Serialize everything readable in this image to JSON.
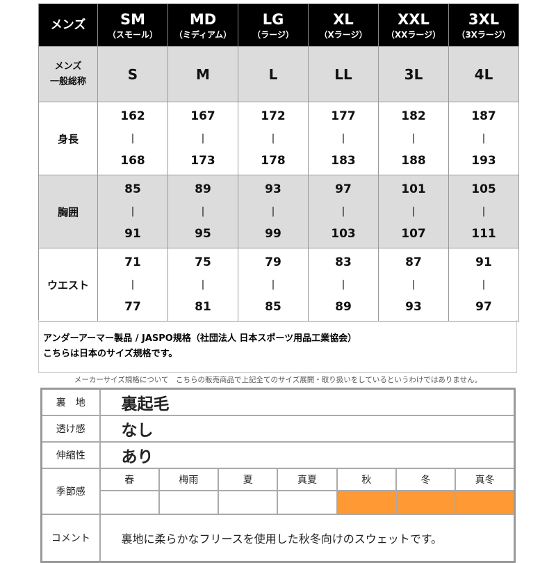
{
  "size_table": {
    "corner_label": "メンズ",
    "sizes": [
      {
        "code": "SM",
        "name": "（スモール）",
        "general": "S",
        "height": [
          "162",
          "|",
          "168"
        ],
        "chest": [
          "85",
          "|",
          "91"
        ],
        "waist": [
          "71",
          "|",
          "77"
        ]
      },
      {
        "code": "MD",
        "name": "（ミディアム）",
        "general": "M",
        "height": [
          "167",
          "|",
          "173"
        ],
        "chest": [
          "89",
          "|",
          "95"
        ],
        "waist": [
          "75",
          "|",
          "81"
        ]
      },
      {
        "code": "LG",
        "name": "（ラージ）",
        "general": "L",
        "height": [
          "172",
          "|",
          "178"
        ],
        "chest": [
          "93",
          "|",
          "99"
        ],
        "waist": [
          "79",
          "|",
          "85"
        ]
      },
      {
        "code": "XL",
        "name": "（Xラージ）",
        "general": "LL",
        "height": [
          "177",
          "|",
          "183"
        ],
        "chest": [
          "97",
          "|",
          "103"
        ],
        "waist": [
          "83",
          "|",
          "89"
        ]
      },
      {
        "code": "XXL",
        "name": "（XXラージ）",
        "general": "3L",
        "height": [
          "182",
          "|",
          "188"
        ],
        "chest": [
          "101",
          "|",
          "107"
        ],
        "waist": [
          "87",
          "|",
          "93"
        ]
      },
      {
        "code": "3XL",
        "name": "（3Xラージ）",
        "general": "4L",
        "height": [
          "187",
          "|",
          "193"
        ],
        "chest": [
          "105",
          "|",
          "111"
        ],
        "waist": [
          "91",
          "|",
          "97"
        ]
      }
    ],
    "row_labels": {
      "general": [
        "メンズ",
        "一般総称"
      ],
      "height": "身長",
      "chest": "胸囲",
      "waist": "ウエスト"
    }
  },
  "note": {
    "line1": "アンダーアーマー製品 / JASPO規格（社団法人 日本スポーツ用品工業協会）",
    "line2": "こちらは日本のサイズ規格です。"
  },
  "disclaimer": "メーカーサイズ規格について　こちらの販売商品で上記全てのサイズ展開・取り扱いをしているというわけではありません。",
  "spec": {
    "lining": {
      "label": "裏　地",
      "value": "裏起毛"
    },
    "sheer": {
      "label": "透け感",
      "value": "なし"
    },
    "stretch": {
      "label": "伸縮性",
      "value": "あり"
    },
    "season": {
      "label": "季節感",
      "items": [
        {
          "name": "春",
          "selected": false
        },
        {
          "name": "梅雨",
          "selected": false
        },
        {
          "name": "夏",
          "selected": false
        },
        {
          "name": "真夏",
          "selected": false
        },
        {
          "name": "秋",
          "selected": true
        },
        {
          "name": "冬",
          "selected": true
        },
        {
          "name": "真冬",
          "selected": true
        }
      ],
      "highlight_color": "#ff9933"
    },
    "comment": {
      "label": "コメント",
      "value": "裏地に柔らかなフリースを使用した秋冬向けのスウェットです。"
    }
  }
}
